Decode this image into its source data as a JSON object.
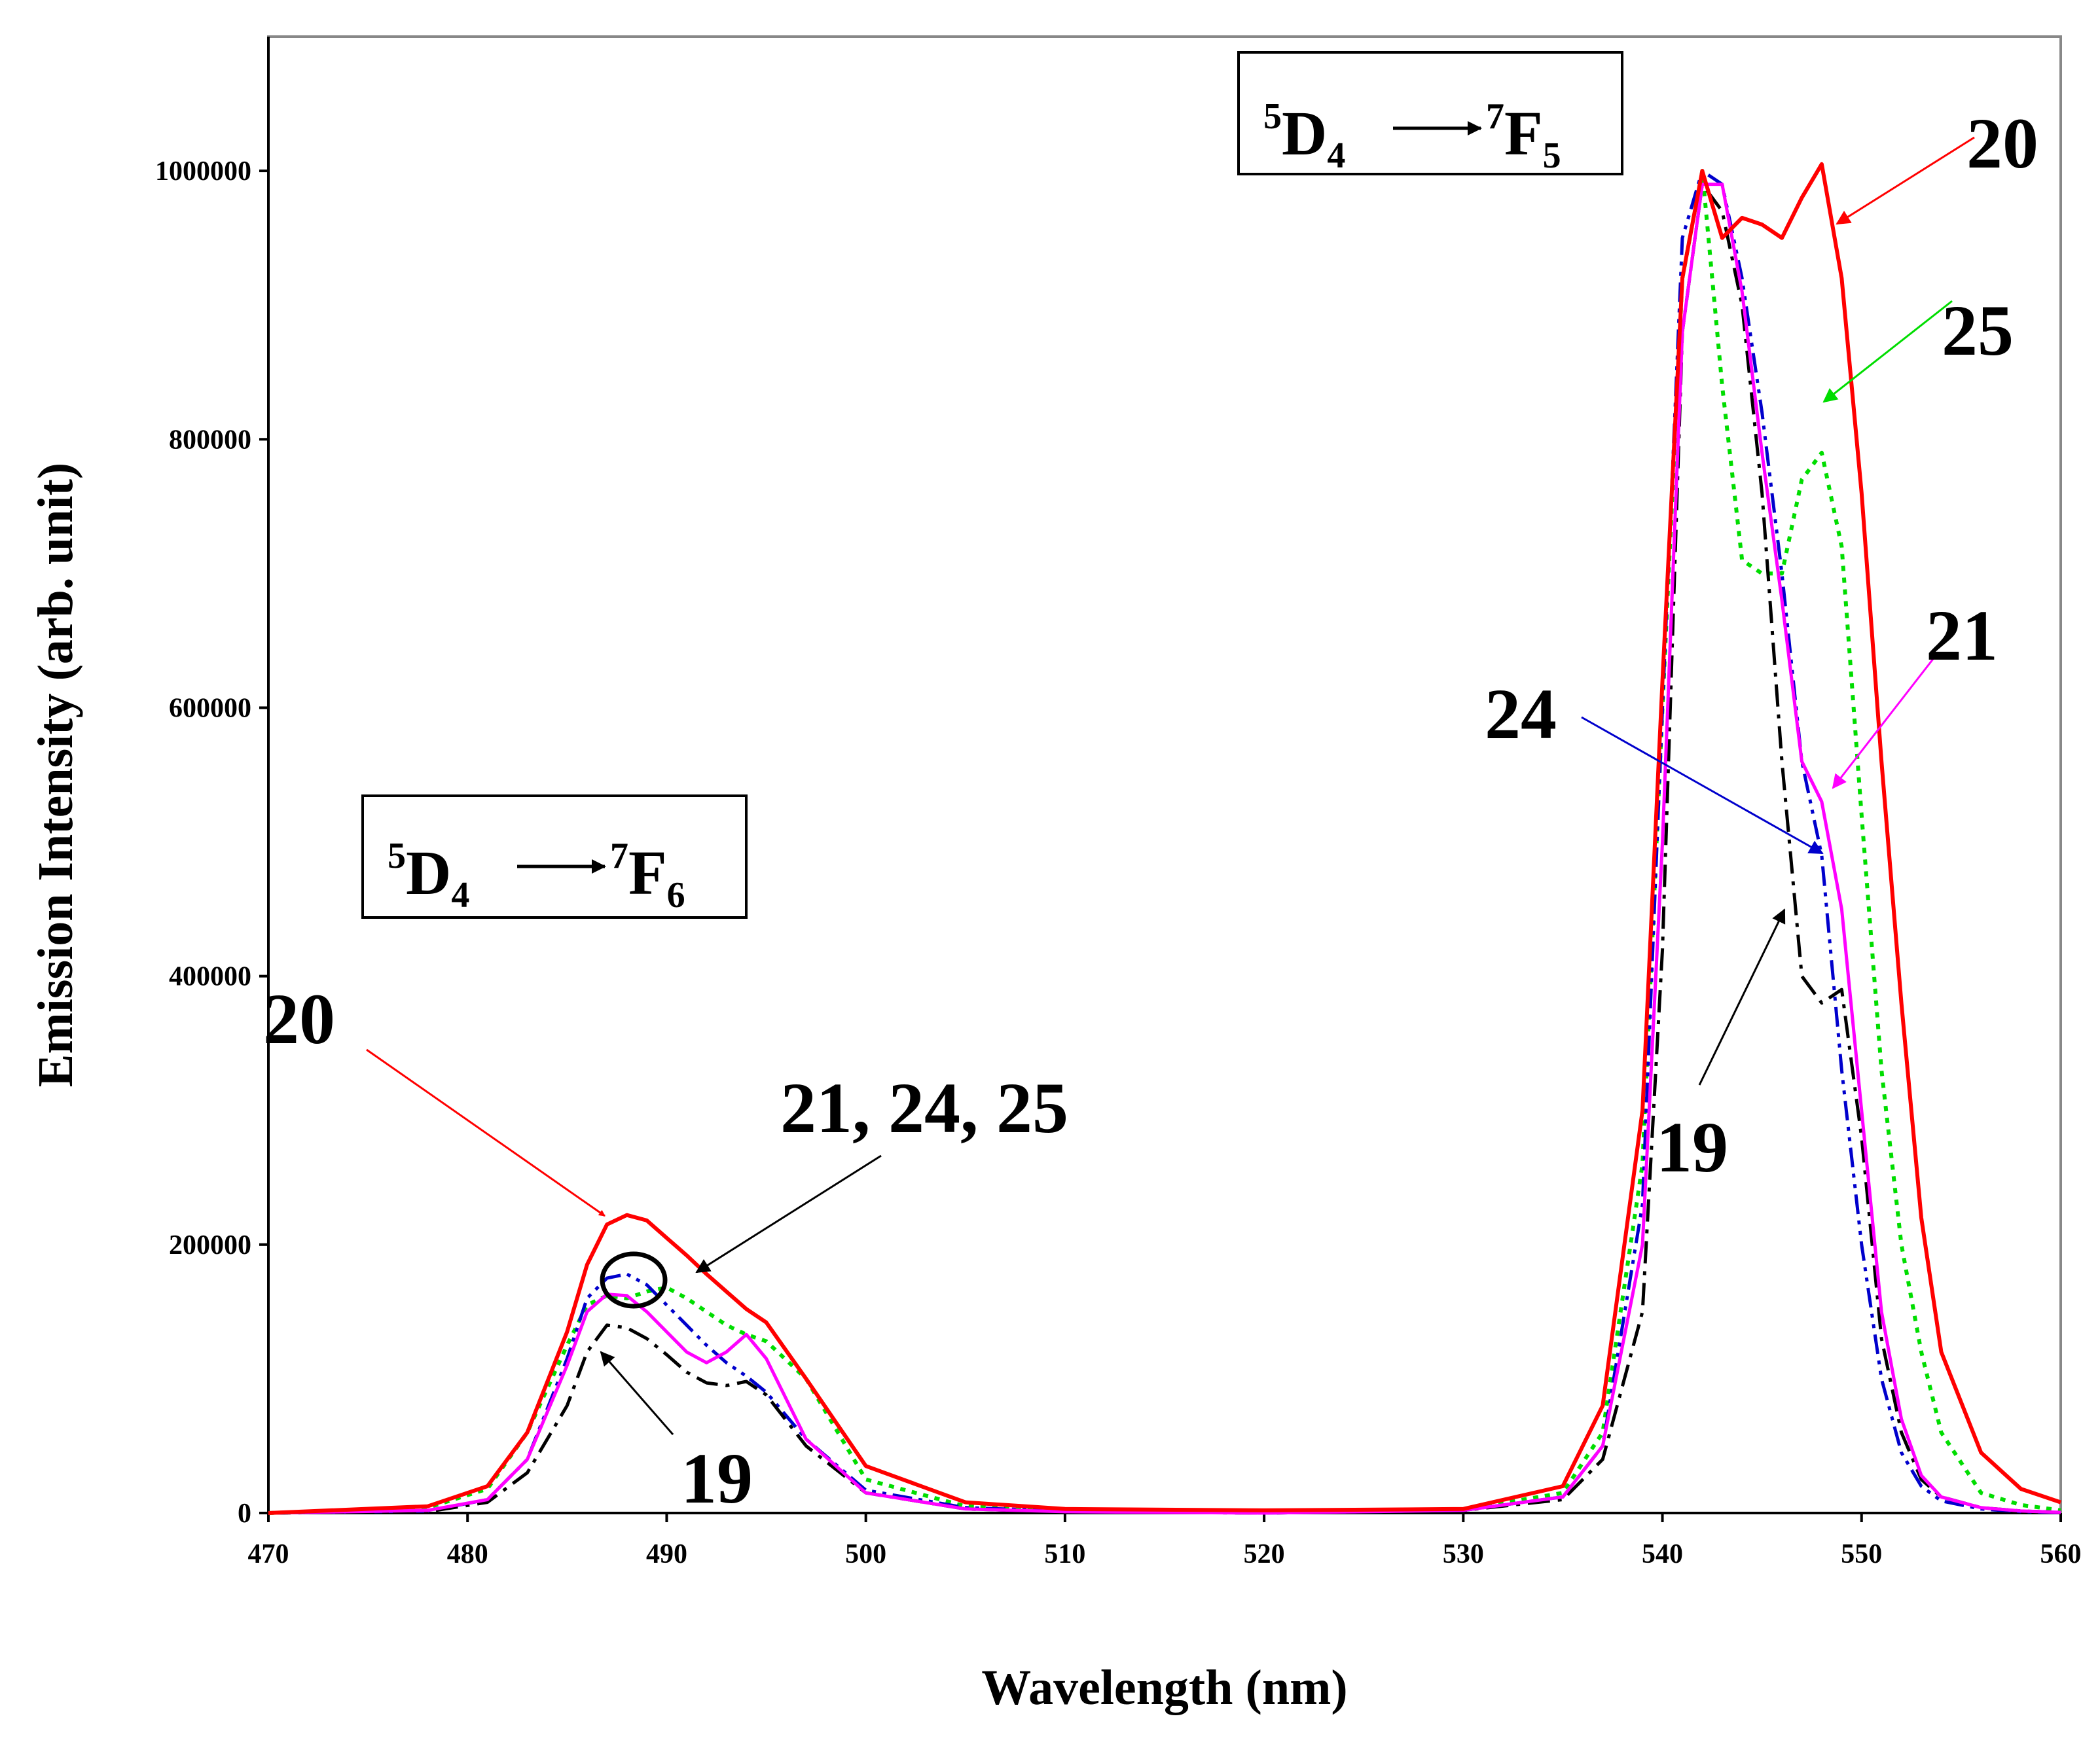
{
  "chart_data": {
    "type": "line",
    "xlabel": "Wavelength (nm)",
    "ylabel": "Emission Intensity (arb. unit)",
    "xlim": [
      470,
      560
    ],
    "ylim": [
      0,
      1100000
    ],
    "grid": false,
    "legend": "none",
    "x_ticks": [
      470,
      480,
      490,
      500,
      510,
      520,
      530,
      540,
      550,
      560
    ],
    "x_tick_labels": [
      "470",
      "480",
      "490",
      "500",
      "510",
      "520",
      "530",
      "540",
      "550",
      "560"
    ],
    "y_ticks": [
      0,
      200000,
      400000,
      600000,
      800000,
      1000000
    ],
    "y_tick_labels": [
      "0",
      "200000",
      "400000",
      "600000",
      "800000",
      "1000000"
    ],
    "transitions": [
      {
        "upper_sup": "5",
        "upper": "D",
        "upper_sub": "4",
        "lower_sup": "7",
        "lower": "F",
        "lower_sub": "5"
      },
      {
        "upper_sup": "5",
        "upper": "D",
        "upper_sub": "4",
        "lower_sup": "7",
        "lower": "F",
        "lower_sub": "6"
      }
    ],
    "series": [
      {
        "name": "19",
        "color": "#000000",
        "dash": "dashdot",
        "x": [
          470,
          478,
          481,
          483,
          485,
          486,
          487,
          488,
          489,
          490,
          491,
          492,
          493,
          494,
          495,
          497,
          500,
          505,
          510,
          520,
          530,
          535,
          537,
          539,
          540,
          541,
          542,
          543,
          544,
          545,
          546,
          547,
          548,
          549,
          550,
          551,
          552,
          553,
          554,
          556,
          558,
          560
        ],
        "y": [
          0,
          1000,
          8000,
          30000,
          80000,
          120000,
          140000,
          138000,
          130000,
          118000,
          105000,
          97000,
          95000,
          98000,
          88000,
          50000,
          15000,
          3000,
          1000,
          0,
          2000,
          10000,
          40000,
          150000,
          420000,
          880000,
          990000,
          970000,
          900000,
          760000,
          560000,
          400000,
          380000,
          390000,
          280000,
          130000,
          60000,
          25000,
          12000,
          4000,
          1500,
          500
        ]
      },
      {
        "name": "20",
        "color": "#ff0000",
        "dash": "solid",
        "x": [
          470,
          478,
          481,
          483,
          485,
          486,
          487,
          488,
          489,
          490,
          491,
          492,
          493,
          494,
          495,
          497,
          500,
          505,
          510,
          520,
          530,
          535,
          537,
          539,
          540,
          541,
          542,
          543,
          544,
          545,
          546,
          547,
          548,
          549,
          550,
          551,
          552,
          553,
          554,
          556,
          558,
          560
        ],
        "y": [
          0,
          5000,
          20000,
          60000,
          135000,
          185000,
          215000,
          222000,
          218000,
          205000,
          192000,
          178000,
          165000,
          152000,
          142000,
          100000,
          35000,
          8000,
          3000,
          2000,
          3000,
          20000,
          80000,
          300000,
          620000,
          920000,
          1000000,
          950000,
          965000,
          960000,
          950000,
          980000,
          1005000,
          920000,
          760000,
          560000,
          380000,
          220000,
          120000,
          45000,
          18000,
          8000
        ]
      },
      {
        "name": "21",
        "color": "#ff00ff",
        "dash": "solid",
        "x": [
          470,
          478,
          481,
          483,
          485,
          486,
          487,
          488,
          489,
          490,
          491,
          492,
          493,
          494,
          495,
          497,
          500,
          505,
          510,
          520,
          530,
          535,
          537,
          539,
          540,
          541,
          542,
          543,
          544,
          545,
          546,
          547,
          548,
          549,
          550,
          551,
          552,
          553,
          554,
          556,
          558,
          560
        ],
        "y": [
          0,
          2000,
          10000,
          40000,
          110000,
          150000,
          163000,
          162000,
          150000,
          135000,
          120000,
          112000,
          120000,
          133000,
          115000,
          55000,
          15000,
          3000,
          1000,
          0,
          2000,
          12000,
          50000,
          200000,
          500000,
          880000,
          990000,
          990000,
          910000,
          790000,
          680000,
          560000,
          530000,
          450000,
          300000,
          150000,
          70000,
          28000,
          12000,
          4000,
          1500,
          500
        ]
      },
      {
        "name": "24",
        "color": "#0000cc",
        "dash": "dashdotdot",
        "x": [
          470,
          478,
          481,
          483,
          485,
          486,
          487,
          488,
          489,
          490,
          491,
          492,
          493,
          494,
          495,
          497,
          500,
          505,
          510,
          520,
          530,
          535,
          537,
          539,
          540,
          541,
          542,
          543,
          544,
          545,
          546,
          547,
          548,
          549,
          550,
          551,
          552,
          553,
          554,
          556,
          558,
          560
        ],
        "y": [
          0,
          1500,
          10000,
          40000,
          115000,
          160000,
          175000,
          178000,
          170000,
          155000,
          140000,
          125000,
          112000,
          102000,
          90000,
          55000,
          17000,
          4000,
          1500,
          0,
          2000,
          12000,
          50000,
          230000,
          600000,
          950000,
          1000000,
          990000,
          920000,
          820000,
          700000,
          560000,
          490000,
          330000,
          200000,
          100000,
          45000,
          20000,
          9000,
          3000,
          1000,
          300
        ]
      },
      {
        "name": "25",
        "color": "#00dd00",
        "dash": "dotted",
        "x": [
          470,
          478,
          481,
          483,
          485,
          486,
          487,
          488,
          489,
          490,
          491,
          492,
          493,
          494,
          495,
          497,
          500,
          505,
          510,
          520,
          530,
          535,
          537,
          539,
          540,
          541,
          542,
          543,
          544,
          545,
          546,
          547,
          548,
          549,
          550,
          551,
          552,
          553,
          554,
          556,
          558,
          560
        ],
        "y": [
          0,
          4000,
          18000,
          60000,
          125000,
          155000,
          162000,
          160000,
          165000,
          168000,
          160000,
          150000,
          140000,
          133000,
          128000,
          100000,
          25000,
          5000,
          2000,
          1000,
          2500,
          15000,
          60000,
          260000,
          600000,
          920000,
          1000000,
          840000,
          710000,
          700000,
          700000,
          770000,
          790000,
          720000,
          520000,
          330000,
          200000,
          120000,
          60000,
          15000,
          6000,
          2000
        ]
      }
    ],
    "annotations": [
      {
        "text": "20",
        "target": "20"
      },
      {
        "text": "21, 24, 25",
        "target": "21,24,25"
      },
      {
        "text": "19",
        "target": "19"
      },
      {
        "text": "20",
        "target": "20"
      },
      {
        "text": "25",
        "target": "25"
      },
      {
        "text": "21",
        "target": "21"
      },
      {
        "text": "24",
        "target": "24"
      },
      {
        "text": "19",
        "target": "19"
      }
    ]
  }
}
